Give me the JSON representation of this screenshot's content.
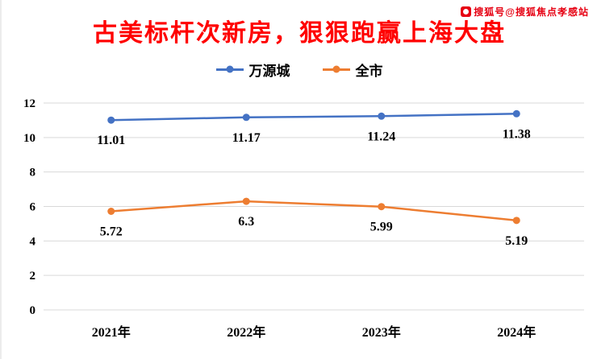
{
  "watermark": {
    "text": "搜狐号@搜狐焦点孝感站",
    "color": "#e60012"
  },
  "title": {
    "text": "古美标杆次新房，狠狠跑赢上海大盘",
    "color": "#ff0000"
  },
  "chart_data": {
    "type": "line",
    "title": "古美标杆次新房，狠狠跑赢上海大盘",
    "categories": [
      "2021年",
      "2022年",
      "2023年",
      "2024年"
    ],
    "series": [
      {
        "name": "万源城",
        "color": "#4472c4",
        "values": [
          11.01,
          11.17,
          11.24,
          11.38
        ]
      },
      {
        "name": "全市",
        "color": "#ed7d31",
        "values": [
          5.72,
          6.3,
          5.99,
          5.19
        ]
      }
    ],
    "xlabel": "",
    "ylabel": "",
    "ylim": [
      0,
      12
    ],
    "ytick_step": 2,
    "grid": true,
    "grid_color": "#d9d9d9",
    "legend_position": "top"
  }
}
